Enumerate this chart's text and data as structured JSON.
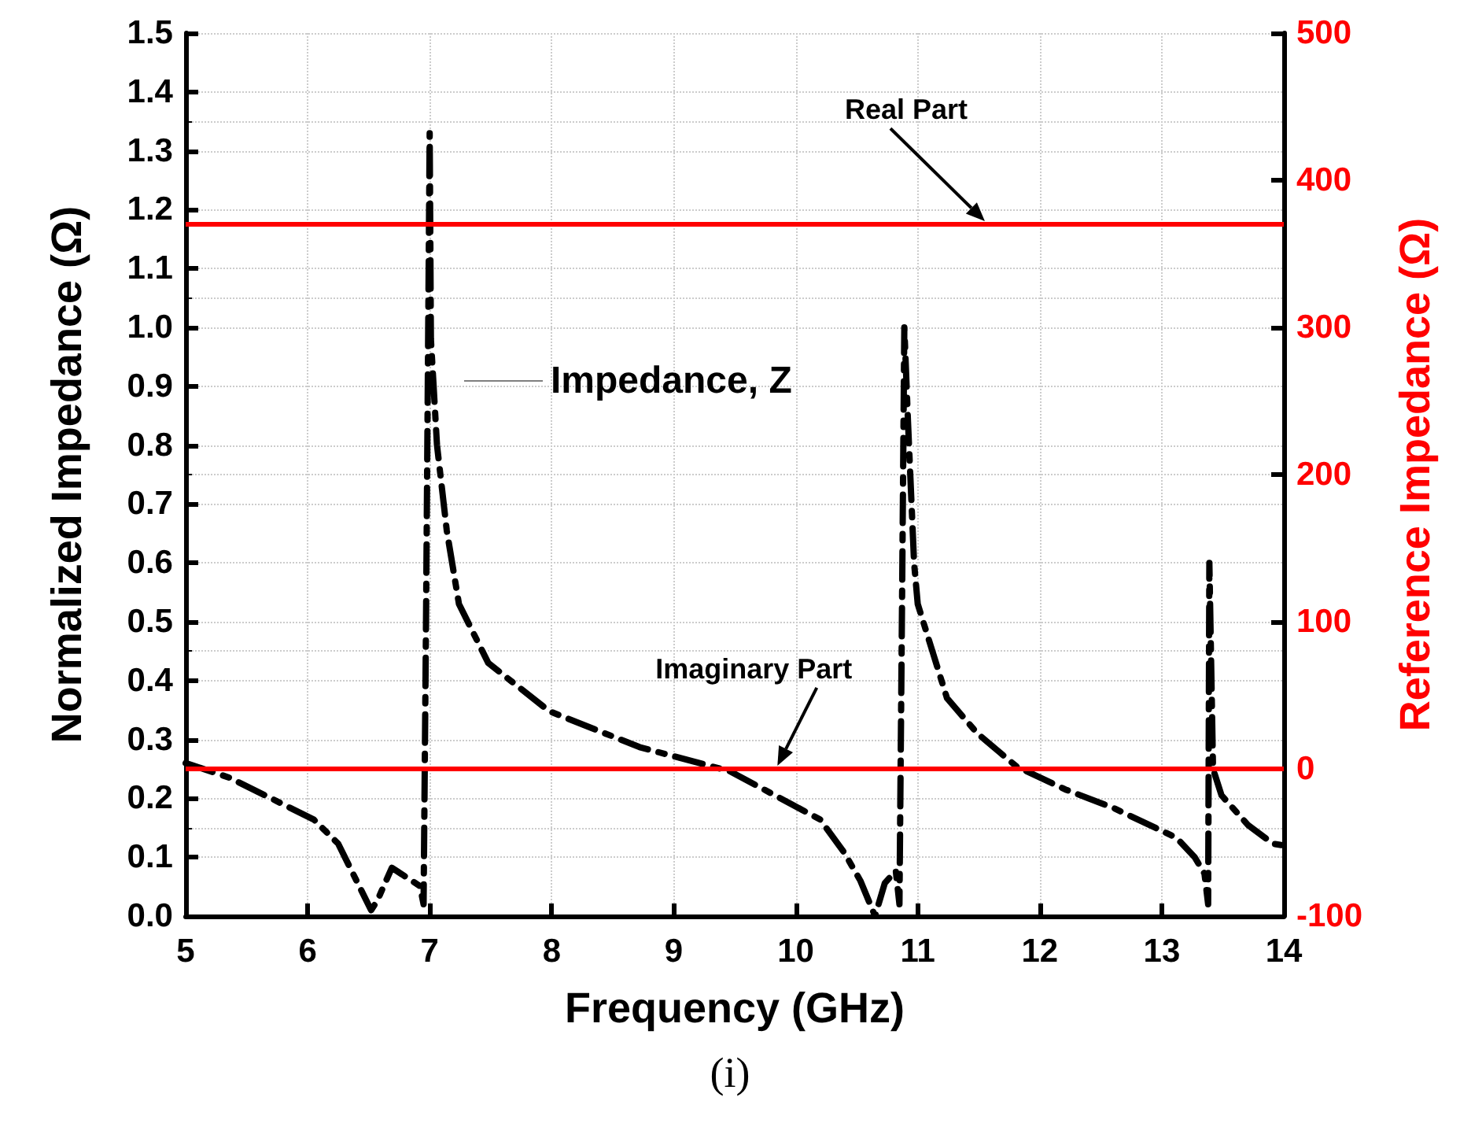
{
  "chart_data": {
    "type": "line",
    "xlabel": "Frequency (GHz)",
    "ylabel": "Normalized Impedance (Ω)",
    "y2label": "Reference Impedance (Ω)",
    "series": [
      {
        "name": "Impedance, Z",
        "color": "#000000",
        "x": [
          5,
          5.36,
          6.05,
          6.25,
          6.52,
          6.57,
          6.69,
          6.92,
          6.95,
          6.97,
          7.0,
          7.01,
          7.06,
          7.14,
          7.24,
          7.48,
          7.98,
          8.72,
          9.46,
          9.74,
          10.2,
          10.4,
          10.53,
          10.65,
          10.73,
          10.82,
          10.85,
          10.87,
          10.89,
          10.92,
          10.97,
          11.0,
          11.12,
          11.24,
          11.49,
          11.81,
          12.21,
          12.6,
          13.12,
          13.27,
          13.35,
          13.38,
          13.39,
          13.42,
          13.49,
          13.71,
          13.91,
          14
        ],
        "values": [
          0.26,
          0.235,
          0.164,
          0.123,
          0.01,
          0.026,
          0.082,
          0.051,
          0.02,
          0.5,
          1.33,
          0.98,
          0.8,
          0.655,
          0.53,
          0.43,
          0.348,
          0.287,
          0.246,
          0.215,
          0.164,
          0.107,
          0.06,
          0.0,
          0.056,
          0.077,
          0.02,
          0.5,
          1.0,
          0.84,
          0.6,
          0.53,
          0.45,
          0.37,
          0.31,
          0.254,
          0.215,
          0.184,
          0.133,
          0.1,
          0.072,
          0.02,
          0.6,
          0.25,
          0.205,
          0.154,
          0.123,
          0.12
        ]
      }
    ],
    "xlim": [
      5,
      14
    ],
    "xticks": [
      5,
      6,
      7,
      8,
      9,
      10,
      11,
      12,
      13,
      14
    ],
    "ylim": [
      0,
      1.5
    ],
    "yticks": [
      {
        "value": 0,
        "label": "0.0"
      },
      0.1,
      0.2,
      0.3,
      0.4,
      0.5,
      0.6,
      0.7,
      0.8,
      0.9,
      {
        "value": 1,
        "label": "1.0"
      },
      1.1,
      1.2,
      1.3,
      1.4,
      1.5
    ],
    "y2lim": [
      -100,
      500
    ],
    "y2ticks": [
      -100,
      0,
      100,
      200,
      300,
      400,
      500
    ],
    "ref_lines": [
      {
        "axis": "y2",
        "value": 370,
        "label": "Real Part",
        "color": "#ff0000"
      },
      {
        "axis": "y2",
        "value": 0,
        "label": "Imaginary Part",
        "color": "#ff0000"
      }
    ],
    "annotations": [
      "(i)"
    ],
    "grid": true,
    "legend": "left",
    "marker": "none",
    "line_style": "dashed"
  }
}
